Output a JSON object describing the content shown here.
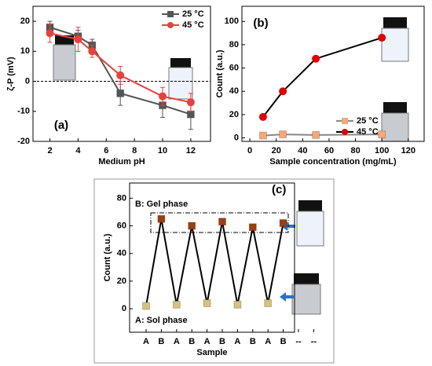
{
  "chart_data": [
    {
      "type": "line",
      "ylabel": "ζ-P (mV)",
      "xlabel": "Medium pH",
      "annotations": [
        "(a)"
      ],
      "x": [
        2,
        4,
        5,
        7,
        10,
        12
      ],
      "xlim": [
        0.8,
        13.4
      ],
      "xticks": [
        2,
        4,
        6,
        8,
        10,
        12
      ],
      "ylim": [
        -20,
        25
      ],
      "yticks": [
        -20,
        -10,
        0,
        10,
        20
      ],
      "reference_line": 0,
      "legend": "upper right",
      "series": [
        {
          "name": "25 °C",
          "color": "#555555",
          "line_color": "#555555",
          "marker": "square",
          "values": [
            18,
            15,
            12,
            -4,
            -8,
            -11
          ],
          "errors": [
            2,
            2,
            2,
            4,
            4,
            5
          ]
        },
        {
          "name": "45 °C",
          "color": "#e8413c",
          "line_color": "#e8413c",
          "marker": "circle",
          "values": [
            16,
            14,
            10,
            2,
            -5,
            -7
          ],
          "errors": [
            3,
            4,
            2,
            3,
            3,
            3
          ]
        }
      ]
    },
    {
      "type": "line",
      "ylabel": "Count (a.u.)",
      "xlabel": "Sample concentration (mg/mL)",
      "annotations": [
        "(b)"
      ],
      "x": [
        10,
        25,
        50,
        100
      ],
      "xlim": [
        -6,
        132
      ],
      "xticks": [
        0,
        20,
        40,
        60,
        80,
        100,
        120
      ],
      "ylim": [
        -3,
        113
      ],
      "yticks": [
        0,
        20,
        40,
        60,
        80,
        100
      ],
      "legend": "lower right",
      "series": [
        {
          "name": "25 °C",
          "color": "#f4a97a",
          "line_color": "#888888",
          "marker": "square",
          "values": [
            2,
            3,
            2.5,
            3
          ]
        },
        {
          "name": "45 °C",
          "color": "#e00000",
          "line_color": "#000000",
          "marker": "circle",
          "values": [
            18,
            40,
            68,
            86
          ]
        }
      ]
    },
    {
      "type": "line",
      "ylabel": "Count (a.u.)",
      "xlabel": "Sample",
      "annotations": [
        "(c)",
        "B: Gel phase",
        "A: Sol phase"
      ],
      "categories": [
        "A",
        "B",
        "A",
        "B",
        "A",
        "B",
        "A",
        "B",
        "A",
        "B",
        "--",
        "--"
      ],
      "ylim": [
        -17,
        91
      ],
      "yticks": [
        0,
        20,
        40,
        60,
        80
      ],
      "series": [
        {
          "color": "#000000",
          "line_color": "#000000",
          "marker": "square",
          "values": [
            2,
            65,
            3,
            60,
            4,
            63,
            3,
            59,
            4,
            62,
            null,
            null
          ],
          "marker_colors": [
            "#d4c27e",
            "#9c3d14",
            "#d4c27e",
            "#9c3d14",
            "#d4c27e",
            "#9c3d14",
            "#d4c27e",
            "#9c3d14",
            "#d4c27e",
            "#9c3d14",
            null,
            null
          ]
        }
      ]
    }
  ]
}
